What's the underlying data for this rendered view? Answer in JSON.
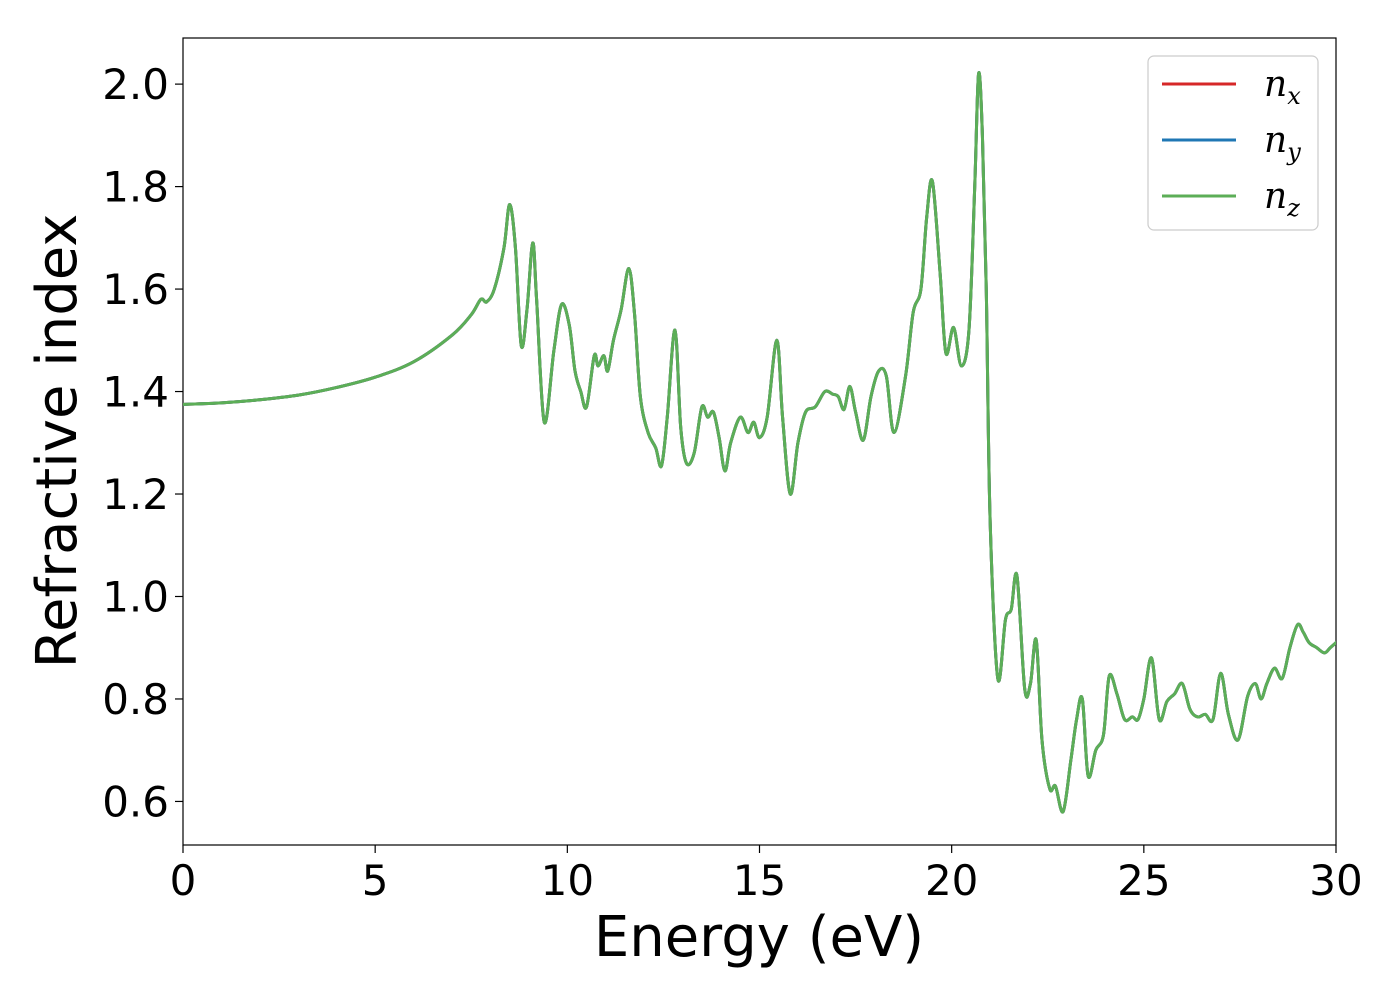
{
  "chart_data": {
    "type": "line",
    "title": "",
    "xlabel": "Energy (eV)",
    "ylabel": "Refractive index",
    "xlim": [
      0,
      30
    ],
    "ylim": [
      0.515,
      2.09
    ],
    "x_ticks": [
      0,
      5,
      10,
      15,
      20,
      25,
      30
    ],
    "y_ticks": [
      0.6,
      0.8,
      1.0,
      1.2,
      1.4,
      1.6,
      1.8,
      2.0
    ],
    "x_tick_labels": [
      "0",
      "5",
      "10",
      "15",
      "20",
      "25",
      "30"
    ],
    "y_tick_labels": [
      "0.6",
      "0.8",
      "1.0",
      "1.2",
      "1.4",
      "1.6",
      "1.8",
      "2.0"
    ],
    "grid": false,
    "legend": "top-right",
    "x": [
      0,
      1,
      2,
      3,
      4,
      5,
      6,
      7,
      7.5,
      7.75,
      7.9,
      8.1,
      8.35,
      8.5,
      8.65,
      8.8,
      8.95,
      9.1,
      9.2,
      9.4,
      9.65,
      9.85,
      10.05,
      10.2,
      10.35,
      10.5,
      10.7,
      10.8,
      10.95,
      11.05,
      11.2,
      11.4,
      11.6,
      11.75,
      11.9,
      12.1,
      12.3,
      12.45,
      12.6,
      12.8,
      12.95,
      13.1,
      13.3,
      13.5,
      13.65,
      13.8,
      13.95,
      14.1,
      14.25,
      14.5,
      14.7,
      14.85,
      15.0,
      15.2,
      15.45,
      15.6,
      15.8,
      16.0,
      16.2,
      16.45,
      16.7,
      16.9,
      17.05,
      17.2,
      17.35,
      17.5,
      17.7,
      17.9,
      18.1,
      18.3,
      18.5,
      18.8,
      19.0,
      19.2,
      19.35,
      19.5,
      19.7,
      19.85,
      20.05,
      20.25,
      20.45,
      20.6,
      20.7,
      20.8,
      20.9,
      21.0,
      21.2,
      21.4,
      21.55,
      21.7,
      21.9,
      22.05,
      22.2,
      22.35,
      22.55,
      22.7,
      22.9,
      23.1,
      23.25,
      23.4,
      23.55,
      23.75,
      23.95,
      24.1,
      24.3,
      24.5,
      24.7,
      24.85,
      25.0,
      25.2,
      25.4,
      25.6,
      25.8,
      26.0,
      26.2,
      26.4,
      26.6,
      26.8,
      27.0,
      27.2,
      27.45,
      27.7,
      27.9,
      28.05,
      28.2,
      28.4,
      28.6,
      28.8,
      29.0,
      29.15,
      29.3,
      29.5,
      29.7,
      29.85,
      30.0
    ],
    "y_common": [
      1.375,
      1.378,
      1.384,
      1.393,
      1.408,
      1.428,
      1.458,
      1.51,
      1.55,
      1.58,
      1.575,
      1.6,
      1.68,
      1.765,
      1.68,
      1.49,
      1.56,
      1.69,
      1.58,
      1.34,
      1.48,
      1.57,
      1.53,
      1.44,
      1.4,
      1.37,
      1.47,
      1.45,
      1.47,
      1.44,
      1.5,
      1.56,
      1.64,
      1.55,
      1.39,
      1.32,
      1.29,
      1.255,
      1.35,
      1.52,
      1.33,
      1.26,
      1.28,
      1.37,
      1.35,
      1.36,
      1.31,
      1.245,
      1.3,
      1.35,
      1.32,
      1.34,
      1.31,
      1.35,
      1.5,
      1.35,
      1.2,
      1.3,
      1.36,
      1.37,
      1.4,
      1.395,
      1.39,
      1.365,
      1.41,
      1.36,
      1.305,
      1.39,
      1.44,
      1.43,
      1.32,
      1.43,
      1.555,
      1.6,
      1.74,
      1.81,
      1.63,
      1.475,
      1.525,
      1.45,
      1.52,
      1.8,
      2.02,
      1.9,
      1.6,
      1.15,
      0.84,
      0.955,
      0.975,
      1.04,
      0.82,
      0.83,
      0.915,
      0.72,
      0.625,
      0.63,
      0.58,
      0.68,
      0.76,
      0.8,
      0.65,
      0.7,
      0.73,
      0.845,
      0.81,
      0.76,
      0.765,
      0.76,
      0.8,
      0.88,
      0.76,
      0.795,
      0.81,
      0.83,
      0.78,
      0.765,
      0.77,
      0.76,
      0.85,
      0.77,
      0.72,
      0.805,
      0.83,
      0.8,
      0.83,
      0.86,
      0.84,
      0.9,
      0.945,
      0.93,
      0.91,
      0.9,
      0.89,
      0.9,
      0.91
    ],
    "series": [
      {
        "name": "n",
        "subscript": "x",
        "color": "#d62728"
      },
      {
        "name": "n",
        "subscript": "y",
        "color": "#1f77b4"
      },
      {
        "name": "n",
        "subscript": "z",
        "color": "#5cae57"
      }
    ]
  }
}
